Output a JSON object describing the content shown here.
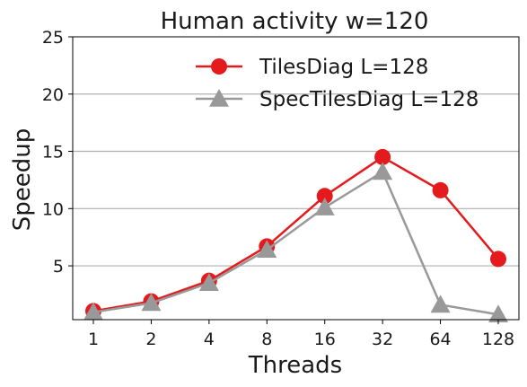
{
  "chart_data": {
    "type": "line",
    "title": "Human activity w=120",
    "xlabel": "Threads",
    "ylabel": "Speedup",
    "categories": [
      "1",
      "2",
      "4",
      "8",
      "16",
      "32",
      "64",
      "128"
    ],
    "ylim": [
      0.3,
      25
    ],
    "yticks": [
      5,
      10,
      15,
      20,
      25
    ],
    "grid": "horizontal",
    "legend_position": "top-right",
    "series": [
      {
        "name": "TilesDiag L=128",
        "color": "#e41a1c",
        "marker": "circle",
        "values": [
          1.05,
          1.9,
          3.7,
          6.7,
          11.1,
          14.5,
          11.6,
          5.6
        ]
      },
      {
        "name": "SpecTilesDiag L=128",
        "color": "#999999",
        "marker": "triangle",
        "values": [
          0.95,
          1.75,
          3.5,
          6.4,
          10.1,
          13.2,
          1.6,
          0.75
        ]
      }
    ]
  }
}
